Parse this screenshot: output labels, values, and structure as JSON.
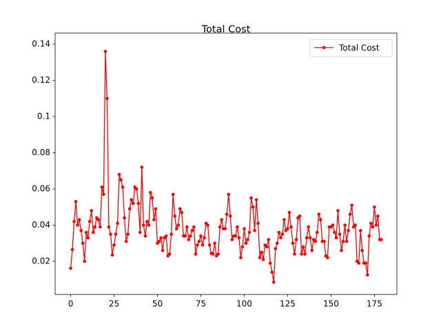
{
  "chart_data": {
    "type": "line",
    "title": "Total Cost",
    "series": [
      {
        "name": "Total Cost",
        "color": "red",
        "marker": "circle",
        "values": [
          0.0162,
          0.0265,
          0.042,
          0.053,
          0.04,
          0.043,
          0.037,
          0.03,
          0.02,
          0.036,
          0.033,
          0.042,
          0.048,
          0.036,
          0.039,
          0.044,
          0.043,
          0.039,
          0.061,
          0.057,
          0.136,
          0.11,
          0.039,
          0.035,
          0.0235,
          0.029,
          0.035,
          0.041,
          0.068,
          0.065,
          0.061,
          0.044,
          0.031,
          0.035,
          0.049,
          0.054,
          0.052,
          0.061,
          0.06,
          0.052,
          0.036,
          0.072,
          0.04,
          0.034,
          0.042,
          0.04,
          0.058,
          0.055,
          0.043,
          0.049,
          0.03,
          0.031,
          0.033,
          0.026,
          0.033,
          0.034,
          0.023,
          0.024,
          0.035,
          0.057,
          0.045,
          0.038,
          0.04,
          0.049,
          0.047,
          0.034,
          0.034,
          0.039,
          0.032,
          0.034,
          0.037,
          0.039,
          0.024,
          0.029,
          0.031,
          0.034,
          0.029,
          0.033,
          0.041,
          0.04,
          0.029,
          0.0245,
          0.024,
          0.03,
          0.023,
          0.024,
          0.039,
          0.043,
          0.038,
          0.038,
          0.046,
          0.057,
          0.045,
          0.032,
          0.034,
          0.034,
          0.039,
          0.033,
          0.022,
          0.028,
          0.038,
          0.03,
          0.032,
          0.036,
          0.055,
          0.05,
          0.037,
          0.054,
          0.041,
          0.022,
          0.025,
          0.021,
          0.029,
          0.028,
          0.032,
          0.019,
          0.014,
          0.0085,
          0.027,
          0.03,
          0.036,
          0.033,
          0.035,
          0.043,
          0.037,
          0.038,
          0.047,
          0.039,
          0.03,
          0.024,
          0.032,
          0.044,
          0.045,
          0.024,
          0.028,
          0.024,
          0.033,
          0.039,
          0.033,
          0.026,
          0.032,
          0.031,
          0.036,
          0.046,
          0.043,
          0.031,
          0.031,
          0.023,
          0.022,
          0.039,
          0.039,
          0.04,
          0.036,
          0.033,
          0.048,
          0.035,
          0.026,
          0.031,
          0.04,
          0.031,
          0.037,
          0.046,
          0.051,
          0.039,
          0.04,
          0.02,
          0.019,
          0.037,
          0.026,
          0.019,
          0.019,
          0.0125,
          0.034,
          0.041,
          0.039,
          0.05,
          0.04,
          0.045,
          0.032,
          0.032
        ]
      }
    ],
    "xlim": [
      -8.95,
      187.95
    ],
    "xticks": [
      0,
      25,
      50,
      75,
      100,
      125,
      150,
      175
    ],
    "ylim": [
      0.0017,
      0.1461
    ],
    "yticks": [
      0.02,
      0.04,
      0.06,
      0.08,
      0.1,
      0.12,
      0.14
    ],
    "legend": "upper right"
  }
}
